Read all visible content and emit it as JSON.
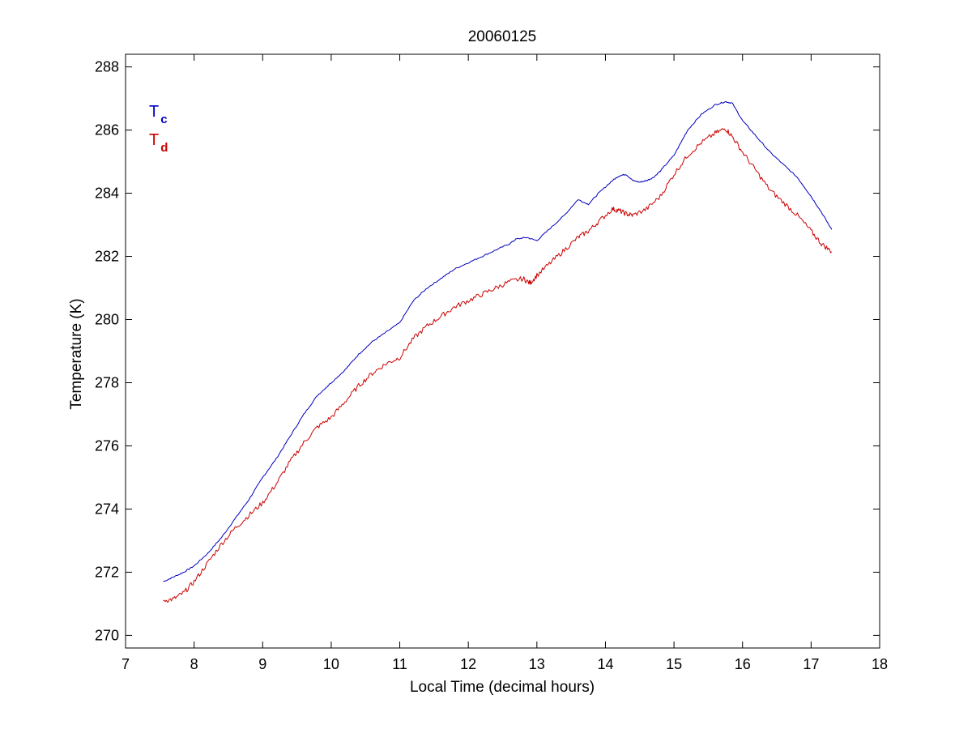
{
  "chart_data": {
    "type": "line",
    "title": "20060125",
    "xlabel": "Local Time (decimal hours)",
    "ylabel": "Temperature (K)",
    "xlim": [
      7,
      18
    ],
    "ylim": [
      269.6,
      288.4
    ],
    "xticks": [
      7,
      8,
      9,
      10,
      11,
      12,
      13,
      14,
      15,
      16,
      17,
      18
    ],
    "yticks": [
      270,
      272,
      274,
      276,
      278,
      280,
      282,
      284,
      286,
      288
    ],
    "grid": false,
    "legend_position": "top-left",
    "series": [
      {
        "name": "Tc",
        "label_main": "T",
        "label_sub": "c",
        "color": "#0000bf",
        "x": [
          7.55,
          7.7,
          7.85,
          8.0,
          8.2,
          8.4,
          8.6,
          8.8,
          9.0,
          9.2,
          9.4,
          9.6,
          9.8,
          10.0,
          10.2,
          10.4,
          10.6,
          10.8,
          11.0,
          11.2,
          11.4,
          11.6,
          11.8,
          12.0,
          12.2,
          12.4,
          12.6,
          12.7,
          12.85,
          13.0,
          13.2,
          13.4,
          13.6,
          13.75,
          13.9,
          14.1,
          14.2,
          14.3,
          14.4,
          14.5,
          14.6,
          14.7,
          14.8,
          15.0,
          15.2,
          15.4,
          15.6,
          15.75,
          15.85,
          16.0,
          16.2,
          16.4,
          16.6,
          16.8,
          17.0,
          17.15,
          17.3
        ],
        "y": [
          271.7,
          271.85,
          272.0,
          272.2,
          272.6,
          273.1,
          273.7,
          274.3,
          275.0,
          275.6,
          276.3,
          277.0,
          277.6,
          278.0,
          278.4,
          278.9,
          279.3,
          279.6,
          279.9,
          280.6,
          281.0,
          281.3,
          281.6,
          281.8,
          282.0,
          282.2,
          282.4,
          282.55,
          282.6,
          282.5,
          282.9,
          283.3,
          283.8,
          283.65,
          284.0,
          284.4,
          284.55,
          284.6,
          284.4,
          284.35,
          284.4,
          284.5,
          284.7,
          285.2,
          286.0,
          286.5,
          286.8,
          286.9,
          286.85,
          286.3,
          285.8,
          285.3,
          284.9,
          284.5,
          283.9,
          283.4,
          282.85
        ]
      },
      {
        "name": "Td",
        "label_main": "T",
        "label_sub": "d",
        "color": "#cc0000",
        "x": [
          7.55,
          7.7,
          7.85,
          8.0,
          8.2,
          8.4,
          8.6,
          8.8,
          9.0,
          9.2,
          9.4,
          9.6,
          9.8,
          10.0,
          10.2,
          10.4,
          10.6,
          10.8,
          11.0,
          11.2,
          11.4,
          11.6,
          11.8,
          12.0,
          12.2,
          12.4,
          12.6,
          12.8,
          12.9,
          13.0,
          13.2,
          13.4,
          13.6,
          13.75,
          13.9,
          14.1,
          14.2,
          14.3,
          14.4,
          14.6,
          14.8,
          15.0,
          15.2,
          15.4,
          15.6,
          15.75,
          15.85,
          16.0,
          16.2,
          16.4,
          16.6,
          16.8,
          17.0,
          17.15,
          17.3
        ],
        "y": [
          271.1,
          271.15,
          271.35,
          271.7,
          272.3,
          272.9,
          273.4,
          273.8,
          274.2,
          274.8,
          275.5,
          276.1,
          276.6,
          276.9,
          277.4,
          277.9,
          278.3,
          278.6,
          278.8,
          279.4,
          279.8,
          280.1,
          280.4,
          280.6,
          280.8,
          281.0,
          281.2,
          281.3,
          281.15,
          281.4,
          281.8,
          282.2,
          282.6,
          282.8,
          283.1,
          283.5,
          283.45,
          283.35,
          283.3,
          283.5,
          283.9,
          284.6,
          285.2,
          285.6,
          285.9,
          286.05,
          285.8,
          285.3,
          284.7,
          284.1,
          283.7,
          283.3,
          282.8,
          282.4,
          282.15
        ]
      }
    ]
  }
}
